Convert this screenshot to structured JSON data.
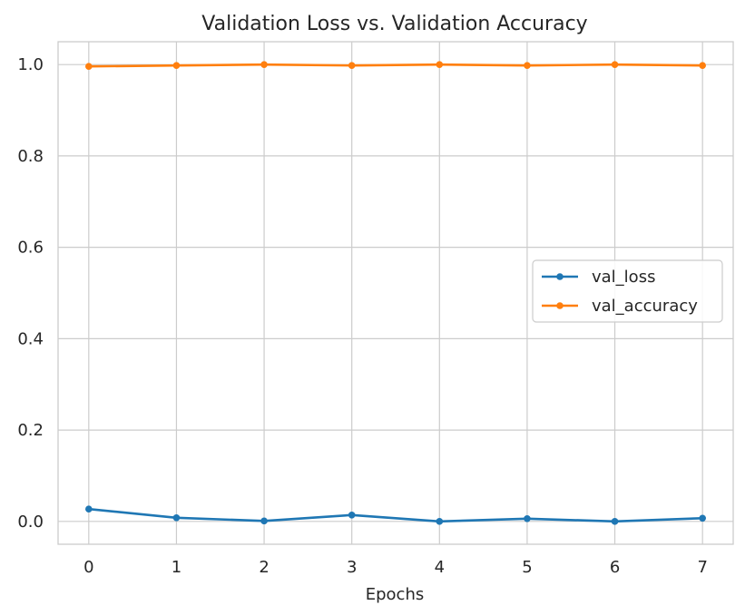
{
  "chart_data": {
    "type": "line",
    "title": "Validation Loss vs. Validation Accuracy",
    "xlabel": "Epochs",
    "ylabel": "",
    "x": [
      0,
      1,
      2,
      3,
      4,
      5,
      6,
      7
    ],
    "x_ticks": [
      "0",
      "1",
      "2",
      "3",
      "4",
      "5",
      "6",
      "7"
    ],
    "y_ticks": [
      "0.0",
      "0.2",
      "0.4",
      "0.6",
      "0.8",
      "1.0"
    ],
    "xlim": [
      -0.35,
      7.35
    ],
    "ylim": [
      -0.05,
      1.05
    ],
    "grid": true,
    "legend_position": "center-right",
    "series": [
      {
        "name": "val_loss",
        "color": "#1f77b4",
        "values": [
          0.027,
          0.008,
          0.001,
          0.014,
          0.0,
          0.006,
          0.0,
          0.007
        ]
      },
      {
        "name": "val_accuracy",
        "color": "#ff7f0e",
        "values": [
          0.996,
          0.998,
          1.0,
          0.998,
          1.0,
          0.998,
          1.0,
          0.998
        ]
      }
    ]
  }
}
